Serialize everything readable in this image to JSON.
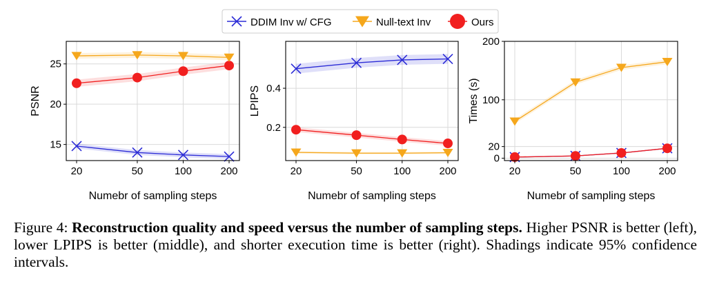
{
  "legend": [
    {
      "label": "DDIM Inv w/ CFG",
      "marker": "x",
      "color": "#2b2bd6"
    },
    {
      "label": "Null-text Inv",
      "marker": "triangle-down",
      "color": "#f5a71c"
    },
    {
      "label": "Ours",
      "marker": "circle",
      "color": "#f11f1f"
    }
  ],
  "chart_data": [
    {
      "type": "line",
      "xlabel": "Numebr of sampling steps",
      "ylabel": "PSNR",
      "x": [
        20,
        50,
        100,
        200
      ],
      "xticks": [
        20,
        50,
        100,
        200
      ],
      "yticks": [
        15,
        20,
        25
      ],
      "ylim": [
        13,
        27.8
      ],
      "grid": true,
      "series": [
        {
          "name": "DDIM Inv w/ CFG",
          "values": [
            14.8,
            14.0,
            13.7,
            13.5
          ],
          "ci": 0.3
        },
        {
          "name": "Null-text Inv",
          "values": [
            26.0,
            26.1,
            26.0,
            25.8
          ],
          "ci": 0.35
        },
        {
          "name": "Ours",
          "values": [
            22.6,
            23.3,
            24.1,
            24.8
          ],
          "ci": 0.45
        }
      ]
    },
    {
      "type": "line",
      "xlabel": "Numebr of sampling steps",
      "ylabel": "LPIPS",
      "x": [
        20,
        50,
        100,
        200
      ],
      "xticks": [
        20,
        50,
        100,
        200
      ],
      "yticks": [
        0.2,
        0.4
      ],
      "ylim": [
        0.03,
        0.64
      ],
      "grid": true,
      "series": [
        {
          "name": "DDIM Inv w/ CFG",
          "values": [
            0.5,
            0.53,
            0.545,
            0.55
          ],
          "ci": 0.025
        },
        {
          "name": "Null-text Inv",
          "values": [
            0.072,
            0.068,
            0.068,
            0.07
          ],
          "ci": 0.006
        },
        {
          "name": "Ours",
          "values": [
            0.188,
            0.16,
            0.138,
            0.118
          ],
          "ci": 0.012
        }
      ]
    },
    {
      "type": "line",
      "xlabel": "Numebr of sampling steps",
      "ylabel": "Times (s)",
      "x": [
        20,
        50,
        100,
        200
      ],
      "xticks": [
        20,
        50,
        100,
        200
      ],
      "yticks": [
        0,
        20,
        100,
        200
      ],
      "ylim": [
        -4,
        200
      ],
      "grid": true,
      "series": [
        {
          "name": "DDIM Inv w/ CFG",
          "values": [
            2,
            4,
            9,
            17
          ],
          "ci": 0.5
        },
        {
          "name": "Null-text Inv",
          "values": [
            63,
            130,
            155,
            165
          ],
          "ci": 4
        },
        {
          "name": "Ours",
          "values": [
            2,
            4,
            9,
            17
          ],
          "ci": 1
        }
      ]
    }
  ],
  "caption": {
    "label": "Figure 4:",
    "title": "Reconstruction quality and speed versus the number of sampling steps.",
    "text": "Higher PSNR is better (left), lower LPIPS is better (middle), and shorter execution time is better (right). Shadings indicate 95% confidence intervals."
  }
}
